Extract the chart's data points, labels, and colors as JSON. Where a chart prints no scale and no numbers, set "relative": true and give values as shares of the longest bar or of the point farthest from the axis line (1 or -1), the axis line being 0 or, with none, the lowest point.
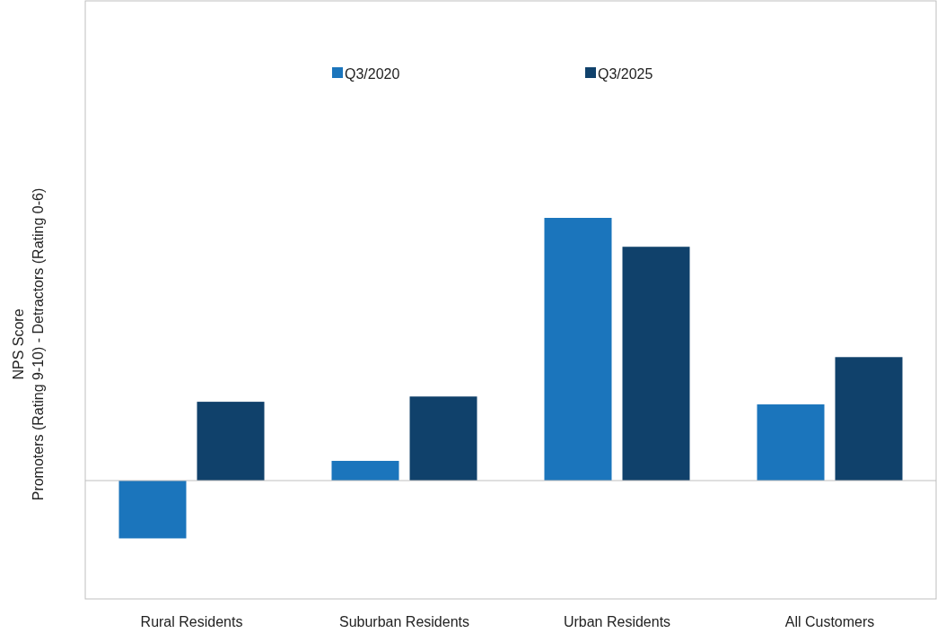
{
  "chart_data": {
    "type": "bar",
    "relative": true,
    "ylabel": "NPS Score\nPromoters (Rating 9-10) - Detractors (Rating 0-6)",
    "categories": [
      "Rural Residents",
      "Suburban Residents",
      "Urban Residents",
      "All Customers"
    ],
    "legend": "top",
    "series": [
      {
        "name": "Q3/2020",
        "color": "#1b75bc",
        "values": [
          -0.22,
          0.075,
          1,
          0.29
        ]
      },
      {
        "name": "Q3/2025",
        "color": "#10416b",
        "values": [
          0.3,
          0.32,
          0.89,
          0.47
        ]
      }
    ]
  }
}
